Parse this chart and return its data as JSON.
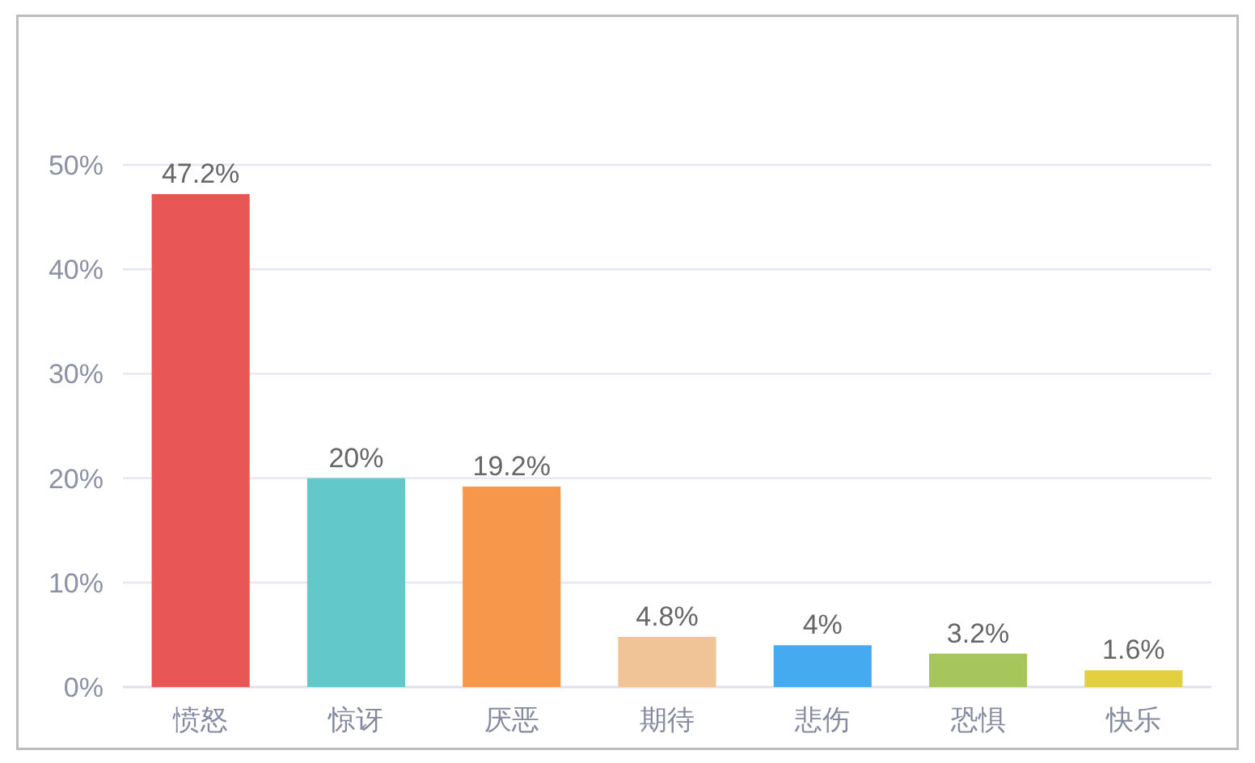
{
  "chart_data": {
    "type": "bar",
    "categories": [
      "愤怒",
      "惊讶",
      "厌恶",
      "期待",
      "悲伤",
      "恐惧",
      "快乐"
    ],
    "values": [
      47.2,
      20,
      19.2,
      4.8,
      4,
      3.2,
      1.6
    ],
    "colors": [
      "#e85656",
      "#63c8c9",
      "#f6974b",
      "#f0c497",
      "#45aaef",
      "#a6c55b",
      "#e3d040"
    ],
    "value_labels": [
      "47.2%",
      "20%",
      "19.2%",
      "4.8%",
      "4%",
      "3.2%",
      "1.6%"
    ],
    "ylim": [
      0,
      50
    ],
    "yticks": [
      {
        "value": 0,
        "label": "0%"
      },
      {
        "value": 10,
        "label": "10%"
      },
      {
        "value": 20,
        "label": "20%"
      },
      {
        "value": 30,
        "label": "30%"
      },
      {
        "value": 40,
        "label": "40%"
      },
      {
        "value": 50,
        "label": "50%"
      }
    ],
    "grid": "y"
  }
}
